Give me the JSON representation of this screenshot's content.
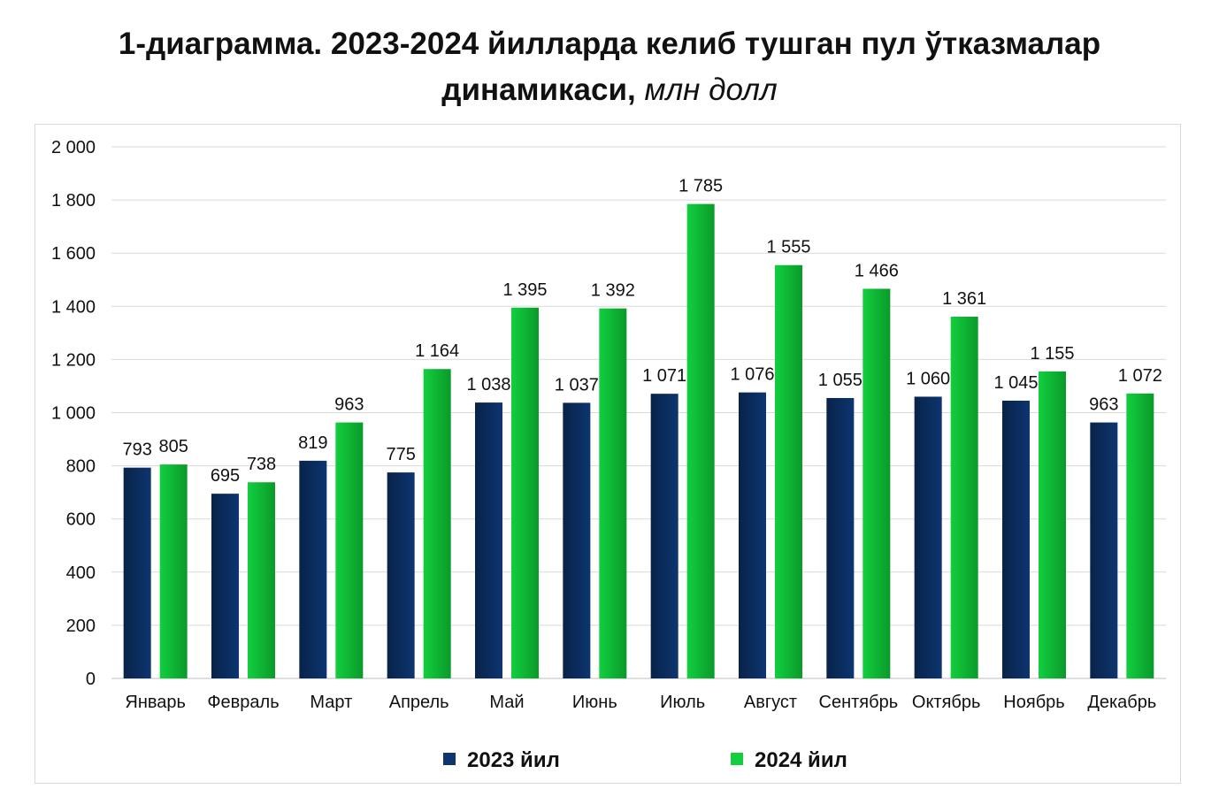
{
  "title": {
    "line1": "1-диаграмма. 2023-2024 йилларда келиб тушган пул ўтказмалар",
    "line2": "динамикаси,",
    "unit": "млн долл"
  },
  "colors": {
    "series_2023": "#0d3570",
    "series_2023_dark": "#082349",
    "series_2024": "#12cf3e",
    "series_2024_dark": "#0a9a2a",
    "grid": "#d9d9d9",
    "axis": "#bfbfbf"
  },
  "chart_data": {
    "type": "bar",
    "categories": [
      "Январь",
      "Февраль",
      "Март",
      "Апрель",
      "Май",
      "Июнь",
      "Июль",
      "Август",
      "Сентябрь",
      "Октябрь",
      "Ноябрь",
      "Декабрь"
    ],
    "series": [
      {
        "name": "2023 йил",
        "values": [
          793,
          695,
          819,
          775,
          1038,
          1037,
          1071,
          1076,
          1055,
          1060,
          1045,
          963
        ],
        "labels": [
          "793",
          "695",
          "819",
          "775",
          "1 038",
          "1 037",
          "1 071",
          "1 076",
          "1 055",
          "1 060",
          "1 045",
          "963"
        ]
      },
      {
        "name": "2024 йил",
        "values": [
          805,
          738,
          963,
          1164,
          1395,
          1392,
          1785,
          1555,
          1466,
          1361,
          1155,
          1072
        ],
        "labels": [
          "805",
          "738",
          "963",
          "1 164",
          "1 395",
          "1 392",
          "1 785",
          "1 555",
          "1 466",
          "1 361",
          "1 155",
          "1 072"
        ]
      }
    ],
    "ylim": [
      0,
      2000
    ],
    "yticks": [
      0,
      200,
      400,
      600,
      800,
      1000,
      1200,
      1400,
      1600,
      1800,
      2000
    ],
    "ytick_labels": [
      "0",
      "200",
      "400",
      "600",
      "800",
      "1 000",
      "1 200",
      "1 400",
      "1 600",
      "1 800",
      "2 000"
    ],
    "grid": true,
    "legend_position": "bottom"
  }
}
